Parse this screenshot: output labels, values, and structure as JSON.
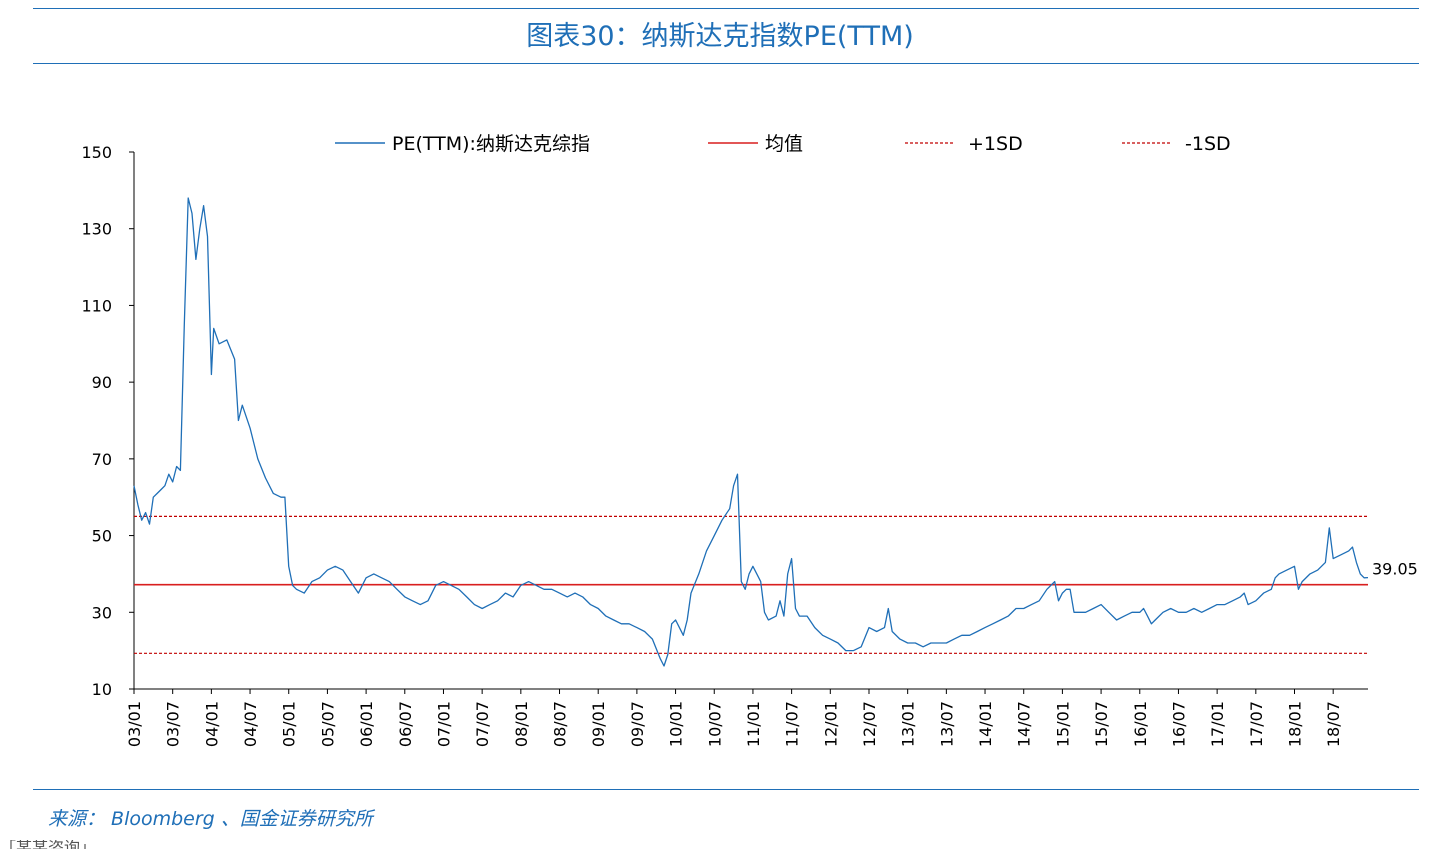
{
  "page": {
    "title": "图表30：纳斯达克指数PE(TTM)",
    "source": "来源： Bloomberg 、国金证券研究所",
    "footer_cut": "「某某咨询」..."
  },
  "chart_data": {
    "type": "line",
    "title": "图表30：纳斯达克指数PE(TTM)",
    "xlabel": "",
    "ylabel": "",
    "ylim": [
      10,
      150
    ],
    "yticks": [
      10,
      30,
      50,
      70,
      90,
      110,
      130,
      150
    ],
    "x_tick_labels": [
      "03/01",
      "03/07",
      "04/01",
      "04/07",
      "05/01",
      "05/07",
      "06/01",
      "06/07",
      "07/01",
      "07/07",
      "08/01",
      "08/07",
      "09/01",
      "09/07",
      "10/01",
      "10/07",
      "11/01",
      "11/07",
      "12/01",
      "12/07",
      "13/01",
      "13/07",
      "14/01",
      "14/07",
      "15/01",
      "15/07",
      "16/01",
      "16/07",
      "17/01",
      "17/07",
      "18/01",
      "18/07"
    ],
    "x_range": [
      2003.0,
      2018.95
    ],
    "legend": [
      "PE(TTM):纳斯达克综指",
      "均值",
      "+1SD",
      "-1SD"
    ],
    "colors": {
      "pe": "#1f6fb7",
      "mean": "#d91f1f",
      "sd": "#c00000"
    },
    "mean": 37.2,
    "plus_1sd": 55.0,
    "minus_1sd": 19.3,
    "last_value_label": "39.05",
    "series": [
      {
        "name": "PE(TTM):纳斯达克综指",
        "points": [
          [
            2003.0,
            63
          ],
          [
            2003.05,
            58
          ],
          [
            2003.1,
            54
          ],
          [
            2003.15,
            56
          ],
          [
            2003.2,
            53
          ],
          [
            2003.25,
            60
          ],
          [
            2003.3,
            61
          ],
          [
            2003.35,
            62
          ],
          [
            2003.4,
            63
          ],
          [
            2003.45,
            66
          ],
          [
            2003.5,
            64
          ],
          [
            2003.55,
            68
          ],
          [
            2003.6,
            67
          ],
          [
            2003.65,
            105
          ],
          [
            2003.7,
            138
          ],
          [
            2003.75,
            134
          ],
          [
            2003.8,
            122
          ],
          [
            2003.85,
            130
          ],
          [
            2003.9,
            136
          ],
          [
            2003.95,
            128
          ],
          [
            2004.0,
            92
          ],
          [
            2004.03,
            104
          ],
          [
            2004.1,
            100
          ],
          [
            2004.2,
            101
          ],
          [
            2004.3,
            96
          ],
          [
            2004.35,
            80
          ],
          [
            2004.4,
            84
          ],
          [
            2004.5,
            78
          ],
          [
            2004.6,
            70
          ],
          [
            2004.7,
            65
          ],
          [
            2004.8,
            61
          ],
          [
            2004.9,
            60
          ],
          [
            2004.95,
            60
          ],
          [
            2005.0,
            42
          ],
          [
            2005.05,
            37
          ],
          [
            2005.1,
            36
          ],
          [
            2005.2,
            35
          ],
          [
            2005.3,
            38
          ],
          [
            2005.4,
            39
          ],
          [
            2005.5,
            41
          ],
          [
            2005.6,
            42
          ],
          [
            2005.7,
            41
          ],
          [
            2005.8,
            38
          ],
          [
            2005.9,
            35
          ],
          [
            2006.0,
            39
          ],
          [
            2006.1,
            40
          ],
          [
            2006.2,
            39
          ],
          [
            2006.3,
            38
          ],
          [
            2006.4,
            36
          ],
          [
            2006.5,
            34
          ],
          [
            2006.6,
            33
          ],
          [
            2006.7,
            32
          ],
          [
            2006.8,
            33
          ],
          [
            2006.9,
            37
          ],
          [
            2007.0,
            38
          ],
          [
            2007.1,
            37
          ],
          [
            2007.2,
            36
          ],
          [
            2007.3,
            34
          ],
          [
            2007.4,
            32
          ],
          [
            2007.5,
            31
          ],
          [
            2007.6,
            32
          ],
          [
            2007.7,
            33
          ],
          [
            2007.8,
            35
          ],
          [
            2007.9,
            34
          ],
          [
            2008.0,
            37
          ],
          [
            2008.1,
            38
          ],
          [
            2008.2,
            37
          ],
          [
            2008.3,
            36
          ],
          [
            2008.4,
            36
          ],
          [
            2008.5,
            35
          ],
          [
            2008.6,
            34
          ],
          [
            2008.7,
            35
          ],
          [
            2008.8,
            34
          ],
          [
            2008.9,
            32
          ],
          [
            2009.0,
            31
          ],
          [
            2009.1,
            29
          ],
          [
            2009.2,
            28
          ],
          [
            2009.3,
            27
          ],
          [
            2009.4,
            27
          ],
          [
            2009.5,
            26
          ],
          [
            2009.6,
            25
          ],
          [
            2009.7,
            23
          ],
          [
            2009.8,
            18
          ],
          [
            2009.85,
            16
          ],
          [
            2009.9,
            19
          ],
          [
            2009.95,
            27
          ],
          [
            2010.0,
            28
          ],
          [
            2010.05,
            26
          ],
          [
            2010.1,
            24
          ],
          [
            2010.15,
            28
          ],
          [
            2010.2,
            35
          ],
          [
            2010.3,
            40
          ],
          [
            2010.4,
            46
          ],
          [
            2010.5,
            50
          ],
          [
            2010.6,
            54
          ],
          [
            2010.7,
            57
          ],
          [
            2010.75,
            63
          ],
          [
            2010.8,
            66
          ],
          [
            2010.85,
            38
          ],
          [
            2010.9,
            36
          ],
          [
            2010.95,
            40
          ],
          [
            2011.0,
            42
          ],
          [
            2011.05,
            40
          ],
          [
            2011.1,
            38
          ],
          [
            2011.15,
            30
          ],
          [
            2011.2,
            28
          ],
          [
            2011.3,
            29
          ],
          [
            2011.35,
            33
          ],
          [
            2011.4,
            29
          ],
          [
            2011.45,
            40
          ],
          [
            2011.5,
            44
          ],
          [
            2011.55,
            31
          ],
          [
            2011.6,
            29
          ],
          [
            2011.7,
            29
          ],
          [
            2011.8,
            26
          ],
          [
            2011.9,
            24
          ],
          [
            2012.0,
            23
          ],
          [
            2012.1,
            22
          ],
          [
            2012.2,
            20
          ],
          [
            2012.3,
            20
          ],
          [
            2012.4,
            21
          ],
          [
            2012.5,
            26
          ],
          [
            2012.6,
            25
          ],
          [
            2012.7,
            26
          ],
          [
            2012.75,
            31
          ],
          [
            2012.8,
            25
          ],
          [
            2012.9,
            23
          ],
          [
            2013.0,
            22
          ],
          [
            2013.1,
            22
          ],
          [
            2013.2,
            21
          ],
          [
            2013.3,
            22
          ],
          [
            2013.4,
            22
          ],
          [
            2013.5,
            22
          ],
          [
            2013.6,
            23
          ],
          [
            2013.7,
            24
          ],
          [
            2013.8,
            24
          ],
          [
            2013.9,
            25
          ],
          [
            2014.0,
            26
          ],
          [
            2014.1,
            27
          ],
          [
            2014.2,
            28
          ],
          [
            2014.3,
            29
          ],
          [
            2014.4,
            31
          ],
          [
            2014.5,
            31
          ],
          [
            2014.6,
            32
          ],
          [
            2014.7,
            33
          ],
          [
            2014.8,
            36
          ],
          [
            2014.9,
            38
          ],
          [
            2014.95,
            33
          ],
          [
            2015.0,
            35
          ],
          [
            2015.05,
            36
          ],
          [
            2015.1,
            36
          ],
          [
            2015.15,
            30
          ],
          [
            2015.2,
            30
          ],
          [
            2015.3,
            30
          ],
          [
            2015.4,
            31
          ],
          [
            2015.5,
            32
          ],
          [
            2015.6,
            30
          ],
          [
            2015.7,
            28
          ],
          [
            2015.8,
            29
          ],
          [
            2015.9,
            30
          ],
          [
            2016.0,
            30
          ],
          [
            2016.05,
            31
          ],
          [
            2016.1,
            29
          ],
          [
            2016.15,
            27
          ],
          [
            2016.2,
            28
          ],
          [
            2016.3,
            30
          ],
          [
            2016.4,
            31
          ],
          [
            2016.5,
            30
          ],
          [
            2016.6,
            30
          ],
          [
            2016.7,
            31
          ],
          [
            2016.8,
            30
          ],
          [
            2016.9,
            31
          ],
          [
            2017.0,
            32
          ],
          [
            2017.1,
            32
          ],
          [
            2017.2,
            33
          ],
          [
            2017.3,
            34
          ],
          [
            2017.35,
            35
          ],
          [
            2017.4,
            32
          ],
          [
            2017.5,
            33
          ],
          [
            2017.6,
            35
          ],
          [
            2017.7,
            36
          ],
          [
            2017.75,
            39
          ],
          [
            2017.8,
            40
          ],
          [
            2017.9,
            41
          ],
          [
            2018.0,
            42
          ],
          [
            2018.05,
            36
          ],
          [
            2018.1,
            38
          ],
          [
            2018.2,
            40
          ],
          [
            2018.3,
            41
          ],
          [
            2018.4,
            43
          ],
          [
            2018.45,
            52
          ],
          [
            2018.5,
            44
          ],
          [
            2018.6,
            45
          ],
          [
            2018.7,
            46
          ],
          [
            2018.75,
            47
          ],
          [
            2018.8,
            43
          ],
          [
            2018.85,
            40
          ],
          [
            2018.9,
            39
          ],
          [
            2018.95,
            39.05
          ]
        ]
      }
    ]
  }
}
